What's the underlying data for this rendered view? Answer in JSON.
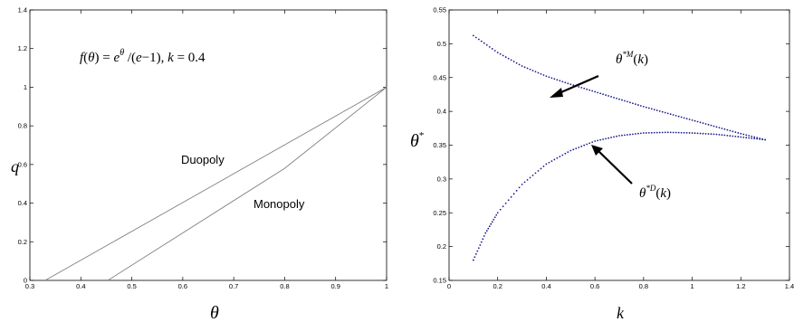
{
  "chart_data": [
    {
      "type": "line",
      "title": "",
      "xlabel": "θ",
      "ylabel": "q",
      "xlim": [
        0.3,
        1.0
      ],
      "ylim": [
        0,
        1.4
      ],
      "xticks": [
        "0.3",
        "0.4",
        "0.5",
        "0.6",
        "0.7",
        "0.8",
        "0.9",
        "1"
      ],
      "yticks": [
        "0",
        "0.2",
        "0.4",
        "0.6",
        "0.8",
        "1",
        "1.2",
        "1.4"
      ],
      "grid": false,
      "annotation_formula": "f(θ) = e^θ /(e−1),  k = 0.4",
      "series": [
        {
          "name": "Duopoly",
          "color": "#808080",
          "x": [
            0.33,
            1.0
          ],
          "y": [
            0,
            1.0
          ]
        },
        {
          "name": "Monopoly",
          "color": "#808080",
          "x": [
            0.453,
            0.8,
            1.0
          ],
          "y": [
            0,
            0.58,
            1.0
          ]
        }
      ]
    },
    {
      "type": "scatter",
      "title": "",
      "xlabel": "k",
      "ylabel": "θ*",
      "xlim": [
        0,
        1.4
      ],
      "ylim": [
        0.15,
        0.55
      ],
      "xticks": [
        "0",
        "0.2",
        "0.4",
        "0.6",
        "0.8",
        "1",
        "1.2",
        "1.4"
      ],
      "yticks": [
        "0.15",
        "0.2",
        "0.25",
        "0.3",
        "0.35",
        "0.4",
        "0.45",
        "0.5",
        "0.55"
      ],
      "grid": false,
      "point_color": "#1a1a8c",
      "series": [
        {
          "name": "θ*M(k)",
          "x": [
            0.1,
            0.2,
            0.3,
            0.4,
            0.5,
            0.6,
            0.7,
            0.8,
            0.9,
            1.0,
            1.1,
            1.2,
            1.3
          ],
          "y": [
            0.512,
            0.487,
            0.467,
            0.452,
            0.44,
            0.429,
            0.418,
            0.407,
            0.397,
            0.387,
            0.377,
            0.367,
            0.358
          ]
        },
        {
          "name": "θ*D(k)",
          "x": [
            0.1,
            0.15,
            0.2,
            0.3,
            0.4,
            0.5,
            0.6,
            0.7,
            0.8,
            0.9,
            1.0,
            1.1,
            1.2,
            1.3
          ],
          "y": [
            0.18,
            0.22,
            0.25,
            0.292,
            0.322,
            0.342,
            0.356,
            0.364,
            0.368,
            0.369,
            0.368,
            0.366,
            0.362,
            0.358
          ]
        }
      ],
      "annotations": [
        {
          "label": "θ*M(k)",
          "arrow_to": [
            0.6,
            0.429
          ]
        },
        {
          "label": "θ*D(k)",
          "arrow_to": [
            0.59,
            0.355
          ]
        }
      ]
    }
  ],
  "labels": {
    "left_curve_duopoly": "Duopoly",
    "left_curve_monopoly": "Monopoly"
  }
}
